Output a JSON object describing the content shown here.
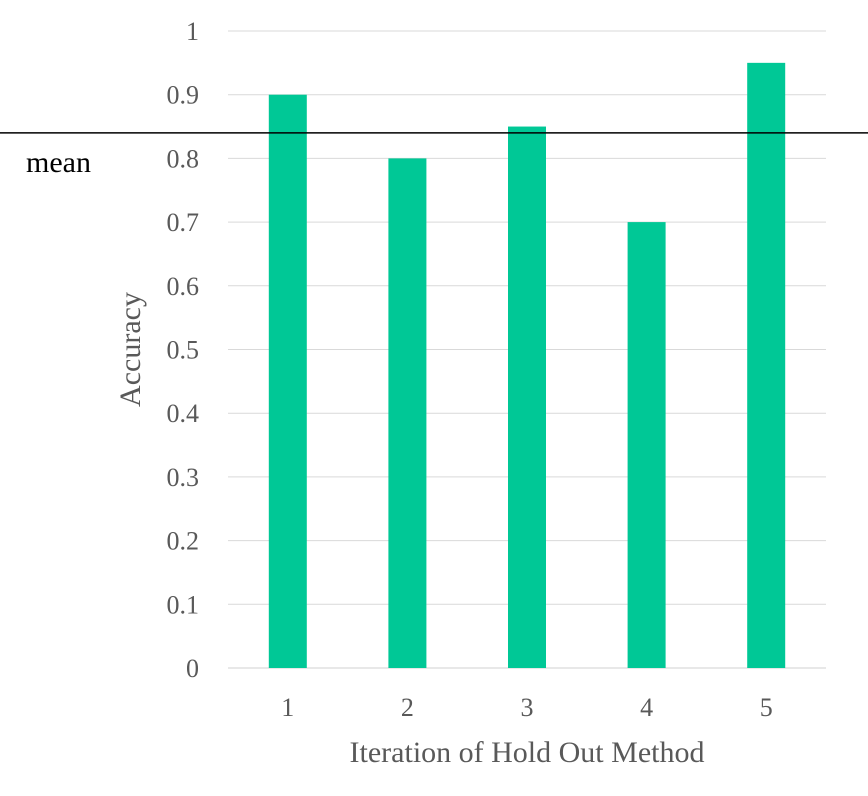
{
  "chart_data": {
    "type": "bar",
    "categories": [
      "1",
      "2",
      "3",
      "4",
      "5"
    ],
    "values": [
      0.9,
      0.8,
      0.85,
      0.7,
      0.95
    ],
    "title": "",
    "xlabel": "Iteration of Hold Out Method",
    "ylabel": "Accuracy",
    "ylim": [
      0,
      1
    ],
    "yticks": [
      "0",
      "0.1",
      "0.2",
      "0.3",
      "0.4",
      "0.5",
      "0.6",
      "0.7",
      "0.8",
      "0.9",
      "1"
    ],
    "grid": true,
    "bar_color": "#00c896",
    "reference_line": {
      "label": "mean",
      "value": 0.84
    }
  }
}
